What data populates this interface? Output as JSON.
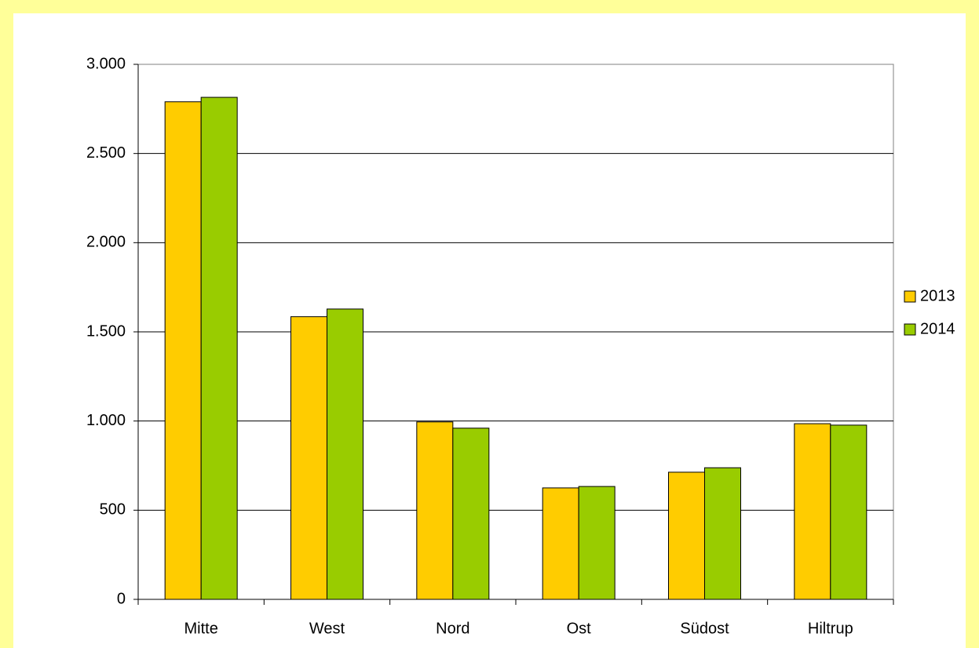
{
  "chart_data": {
    "type": "bar",
    "categories": [
      "Mitte",
      "West",
      "Nord",
      "Ost",
      "Südost",
      "Hiltrup"
    ],
    "series": [
      {
        "name": "2013",
        "color": "#ffcc00",
        "values": [
          2790,
          1585,
          995,
          625,
          713,
          985
        ]
      },
      {
        "name": "2014",
        "color": "#99cc00",
        "values": [
          2815,
          1628,
          960,
          633,
          738,
          977
        ]
      }
    ],
    "ylim": [
      0,
      3000
    ],
    "yticks": [
      0,
      500,
      {
        "value": 1000,
        "label": "1.000"
      },
      {
        "value": 1500,
        "label": "1.500"
      },
      {
        "value": 2000,
        "label": "2.000"
      },
      {
        "value": 2500,
        "label": "2.500"
      },
      {
        "value": 3000,
        "label": "3.000"
      }
    ],
    "grid": true,
    "legend": "right"
  }
}
